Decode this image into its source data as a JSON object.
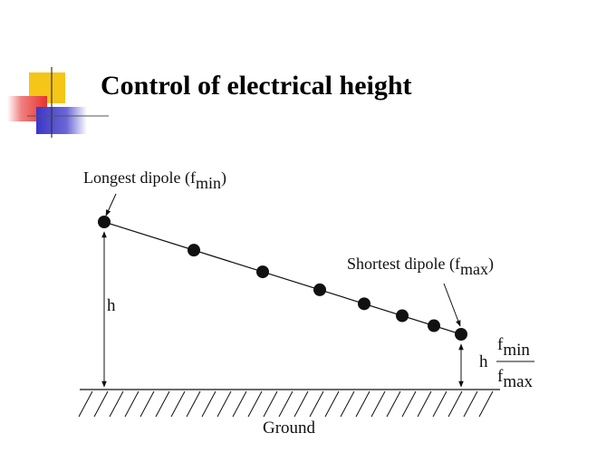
{
  "slide": {
    "title": "Control of electrical height"
  },
  "diagram": {
    "longest_label": {
      "text": "Longest dipole (f",
      "sub": "min",
      "close": ")"
    },
    "shortest_label": {
      "text": "Shortest dipole (f",
      "sub": "max",
      "close": ")"
    },
    "h_label": "h",
    "ratio": {
      "prefix": "h",
      "num_base": "f",
      "num_sub": "min",
      "den_base": "f",
      "den_sub": "max"
    },
    "ground_label": "Ground",
    "dipole_count": 8,
    "colors": {
      "ink": "#111111",
      "accent_yellow": "#f5c518",
      "accent_red": "#e8322c",
      "accent_blue": "#3b36c9"
    }
  }
}
